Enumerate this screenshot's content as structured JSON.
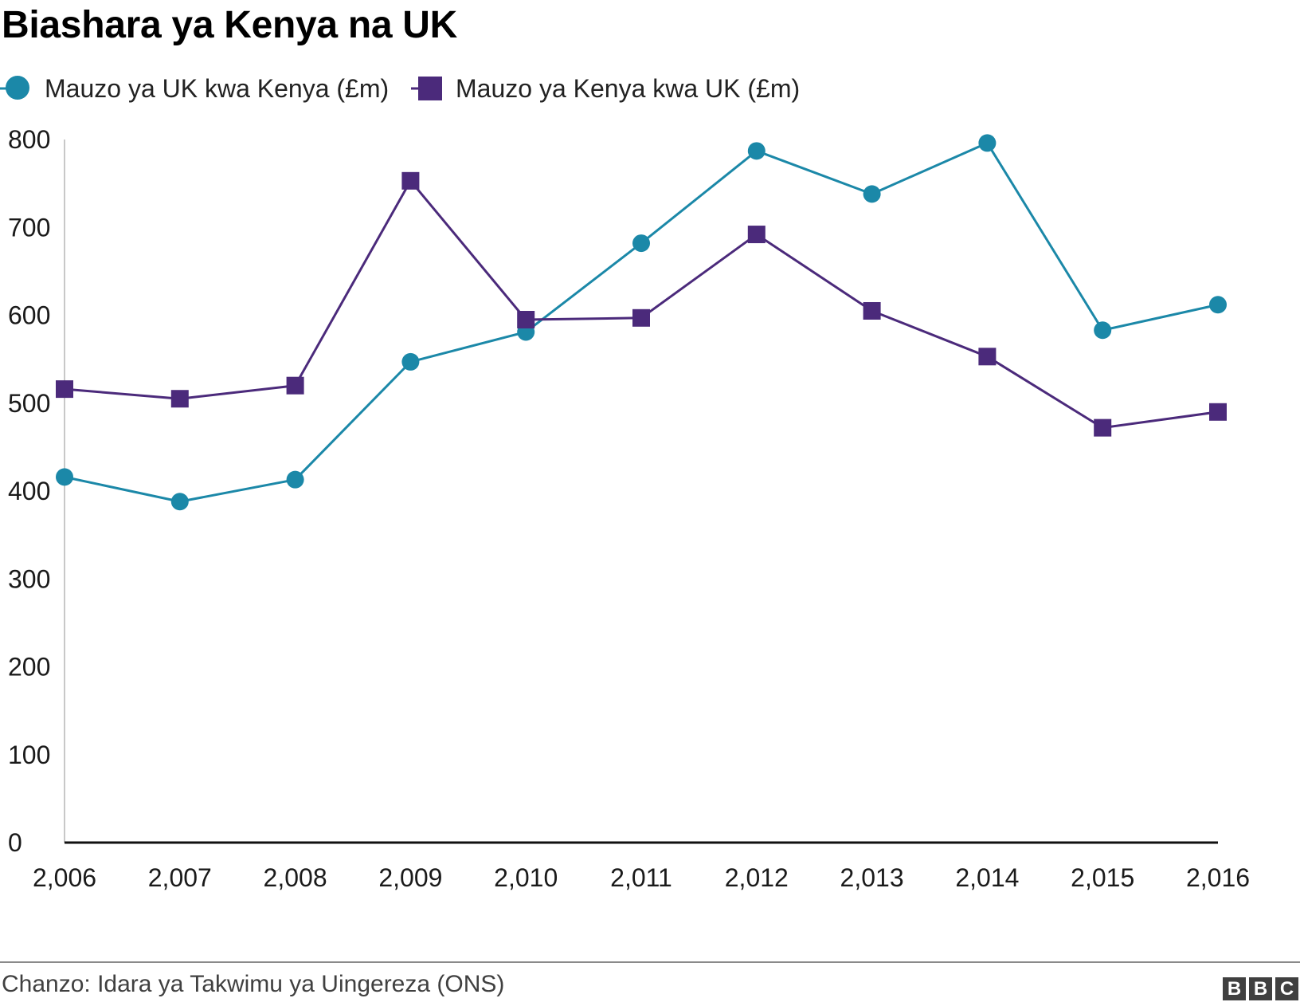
{
  "chart_data": {
    "type": "line",
    "title": "Biashara ya Kenya na UK",
    "x": [
      "2,006",
      "2,007",
      "2,008",
      "2,009",
      "2,010",
      "2,011",
      "2,012",
      "2,013",
      "2,014",
      "2,015",
      "2,016"
    ],
    "series": [
      {
        "name": "Mauzo ya UK kwa Kenya (£m)",
        "color": "#1b88a8",
        "marker": "circle",
        "values": [
          416,
          388,
          413,
          547,
          581,
          682,
          787,
          738,
          796,
          583,
          612
        ]
      },
      {
        "name": "Mauzo ya Kenya kwa UK (£m)",
        "color": "#4b2a7b",
        "marker": "square",
        "values": [
          516,
          505,
          520,
          753,
          595,
          597,
          692,
          605,
          553,
          472,
          490
        ]
      }
    ],
    "yticks": [
      "0",
      "100",
      "200",
      "300",
      "400",
      "500",
      "600",
      "700",
      "800"
    ],
    "ylim": [
      0,
      800
    ],
    "xlabel": "",
    "ylabel": "",
    "grid": false,
    "legend_position": "top-left"
  },
  "footer": {
    "source": "Chanzo: Idara ya Takwimu ya Uingereza (ONS)",
    "logo_letters": [
      "B",
      "B",
      "C"
    ]
  }
}
